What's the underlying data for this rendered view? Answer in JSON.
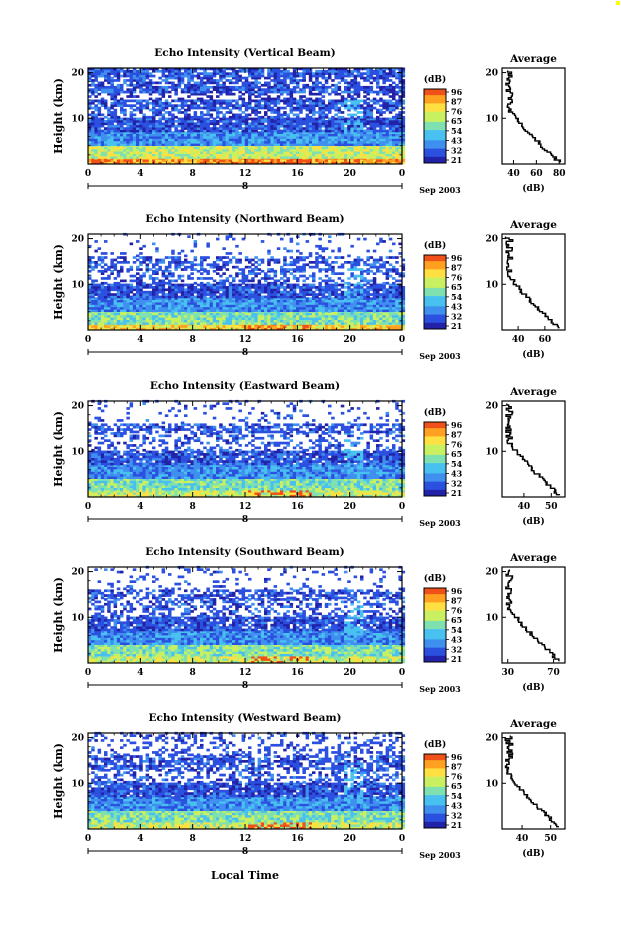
{
  "figure": {
    "xlabel": "Local Time"
  },
  "panels": [
    {
      "title": "Echo Intensity (Vertical Beam)",
      "avg_ticks": [
        "40",
        "60",
        "80"
      ],
      "avg_range": [
        30,
        85
      ],
      "cbar_ticks": [
        "96",
        "87",
        "76",
        "65",
        "54",
        "43",
        "32",
        "21"
      ]
    },
    {
      "title": "Echo Intensity (Northward Beam)",
      "avg_ticks": [
        "40",
        "60"
      ],
      "avg_range": [
        28,
        75
      ],
      "cbar_ticks": [
        "96",
        "87",
        "76",
        "65",
        "54",
        "43",
        "32",
        "21"
      ]
    },
    {
      "title": "Echo Intensity (Eastward Beam)",
      "avg_ticks": [
        "40",
        "50"
      ],
      "avg_range": [
        32,
        55
      ],
      "cbar_ticks": [
        "96",
        "87",
        "76",
        "65",
        "54",
        "43",
        "32",
        "21"
      ]
    },
    {
      "title": "Echo Intensity (Southward Beam)",
      "avg_ticks": [
        "30",
        "70"
      ],
      "avg_range": [
        25,
        80
      ],
      "cbar_ticks": [
        "96",
        "87",
        "76",
        "65",
        "54",
        "43",
        "32",
        "21"
      ]
    },
    {
      "title": "Echo Intensity (Westward Beam)",
      "avg_ticks": [
        "40",
        "50"
      ],
      "avg_range": [
        33,
        55
      ],
      "cbar_ticks": [
        "96",
        "87",
        "76",
        "65",
        "54",
        "43",
        "32",
        "21"
      ]
    }
  ],
  "chart_data": {
    "type": "heatmap",
    "x_ticks": [
      "0",
      "4",
      "8",
      "12",
      "16",
      "20",
      "0"
    ],
    "xlim": [
      0,
      24
    ],
    "y_ticks": [
      "10",
      "20"
    ],
    "ylim": [
      0,
      21
    ],
    "ylabel": "Height (km)",
    "date_label": "8",
    "date_suffix": "Sep 2003",
    "colorbar_label": "(dB)",
    "colorbar_colors": [
      "#2222a8",
      "#2b50e0",
      "#3f8fef",
      "#48c0f0",
      "#7fe0b0",
      "#c8f060",
      "#ffe040",
      "#ffa020",
      "#f05018"
    ],
    "average_title": "Average",
    "average_xlabel": "(dB)"
  }
}
